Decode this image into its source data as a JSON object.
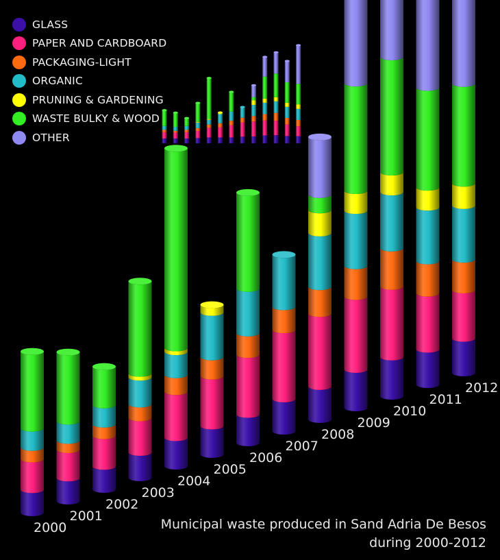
{
  "chart_data": {
    "type": "bar",
    "stacked": true,
    "title": "Municipal waste produced in Sand Adria De Besos",
    "subtitle": "during 2000-2012",
    "categories": [
      "2000",
      "2001",
      "2002",
      "2003",
      "2004",
      "2005",
      "2006",
      "2007",
      "2008",
      "2009",
      "2010",
      "2011",
      "2012"
    ],
    "series": [
      {
        "name": "GLASS",
        "color": "#3a10a8",
        "values": [
          30,
          30,
          30,
          33,
          37,
          37,
          37,
          42,
          43,
          50,
          51,
          46,
          45
        ]
      },
      {
        "name": "PAPER AND CARDBOARD",
        "color": "#ff1f7d",
        "values": [
          40,
          37,
          40,
          45,
          60,
          65,
          78,
          90,
          95,
          95,
          92,
          73,
          63
        ]
      },
      {
        "name": "PACKAGING-LIGHT",
        "color": "#ff6a10",
        "values": [
          15,
          12,
          15,
          18,
          22,
          25,
          28,
          30,
          35,
          40,
          50,
          42,
          40
        ]
      },
      {
        "name": "ORGANIC",
        "color": "#22bcc8",
        "values": [
          25,
          25,
          25,
          35,
          30,
          58,
          58,
          68,
          70,
          72,
          73,
          70,
          70
        ]
      },
      {
        "name": "PRUNING & GARDENING",
        "color": "#ffff00",
        "values": [
          0,
          0,
          0,
          5,
          5,
          10,
          0,
          0,
          30,
          26,
          26,
          26,
          29
        ]
      },
      {
        "name": "WASTE BULKY & WOOD",
        "color": "#33ee22",
        "values": [
          100,
          90,
          50,
          120,
          260,
          0,
          125,
          0,
          20,
          140,
          150,
          130,
          130
        ]
      },
      {
        "name": "OTHER",
        "color": "#8f89f2",
        "values": [
          0,
          0,
          0,
          0,
          0,
          0,
          0,
          0,
          75,
          125,
          135,
          135,
          245
        ]
      }
    ],
    "legend_position": "top-left",
    "grid": false
  }
}
